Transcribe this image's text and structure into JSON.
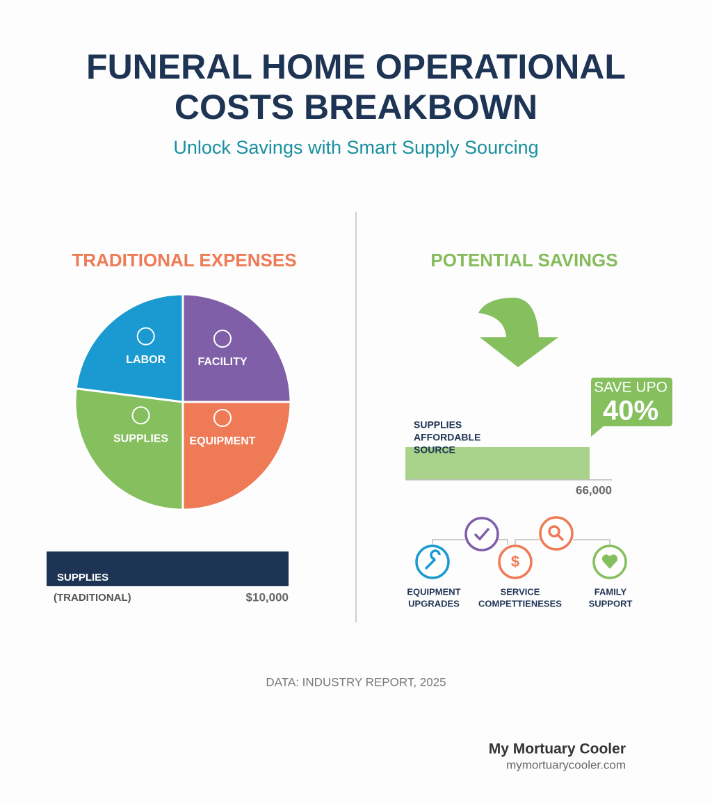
{
  "header": {
    "title_lines": [
      "FUNERAL HOME OPERATIONAL",
      "COSTS BREAKBOWN"
    ],
    "subtitle": "Unlock Savings with Smart Supply Sourcing"
  },
  "traditional": {
    "heading": "TRADITIONAL EXPENSES",
    "bar": {
      "label": "SUPPLIES",
      "sublabel": "(TRADITIONAL)",
      "value_text": "$10,000"
    }
  },
  "chart_data": {
    "type": "pie",
    "categories": [
      "FACILITY",
      "EQUIPMENT",
      "SUPPLIES",
      "LABOR"
    ],
    "values": [
      25,
      25,
      27,
      23
    ],
    "colors": [
      "#7e5fa8",
      "#ef7a56",
      "#86bf5e",
      "#1a9ad0"
    ]
  },
  "savings": {
    "heading": "POTENTIAL SAVINGS",
    "badge": {
      "line1": "SAVE UPO",
      "line2": "40%"
    },
    "bar": {
      "label_lines": [
        "SUPPLIES",
        "AFFORDABLE",
        "SOURCE"
      ],
      "value_text": "66,000"
    },
    "benefits": [
      {
        "lines": [
          "EQUIPMENT",
          "UPGRADES"
        ]
      },
      {
        "lines": [
          "SERVICE",
          "COMPETTIENESES"
        ]
      },
      {
        "lines": [
          "FAMILY",
          "SUPPORT"
        ]
      }
    ]
  },
  "footer": {
    "source": "DATA: INDUSTRY REPORT, 2025",
    "brand": "My Mortuary Cooler",
    "url": "mymortuarycooler.com"
  }
}
